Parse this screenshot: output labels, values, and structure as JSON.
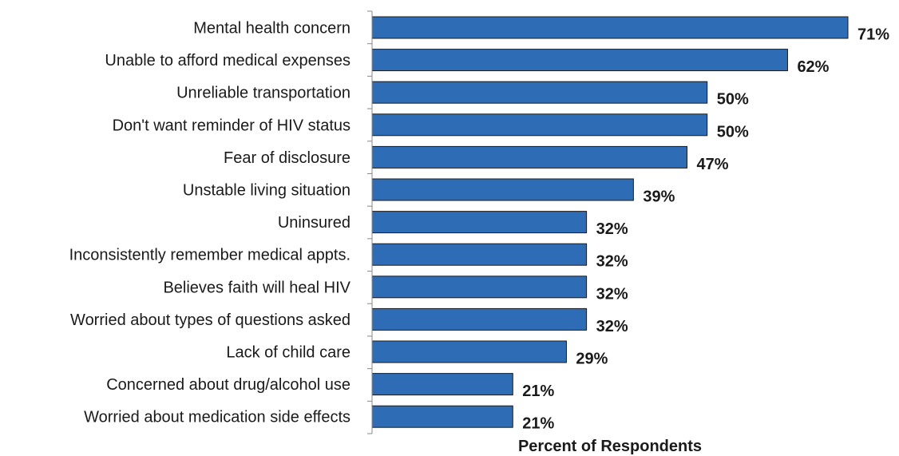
{
  "chart_data": {
    "type": "bar",
    "orientation": "horizontal",
    "categories": [
      "Mental health concern",
      "Unable to afford medical expenses",
      "Unreliable transportation",
      "Don't want reminder of HIV status",
      "Fear of disclosure",
      "Unstable living situation",
      "Uninsured",
      "Inconsistently remember medical appts.",
      "Believes faith will heal HIV",
      "Worried about types of questions asked",
      "Lack of child care",
      "Concerned about drug/alcohol use",
      "Worried about medication side effects"
    ],
    "values": [
      71,
      62,
      50,
      50,
      47,
      39,
      32,
      32,
      32,
      32,
      29,
      21,
      21
    ],
    "value_labels": [
      "71%",
      "62%",
      "50%",
      "50%",
      "47%",
      "39%",
      "32%",
      "32%",
      "32%",
      "32%",
      "29%",
      "21%",
      "21%"
    ],
    "title": "",
    "xlabel": "Percent of Respondents",
    "ylabel": "",
    "xlim": [
      0,
      71
    ],
    "grid": false,
    "legend": "none",
    "bar_color": "#2e6db5"
  }
}
